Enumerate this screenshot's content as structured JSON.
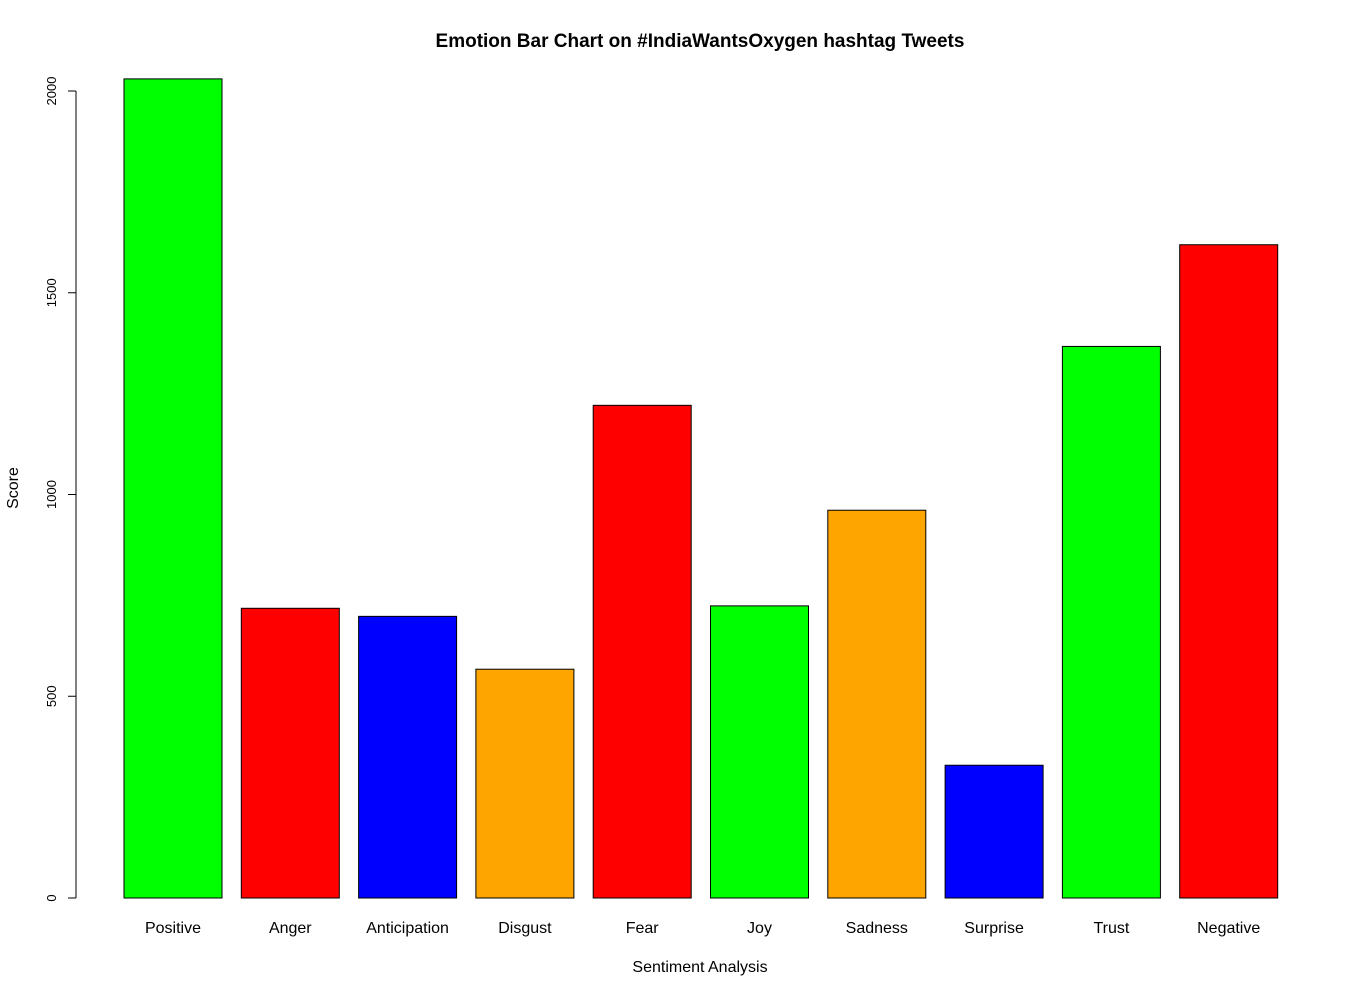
{
  "chart_data": {
    "type": "bar",
    "title": "Emotion Bar Chart on #IndiaWantsOxygen hashtag Tweets",
    "xlabel": "Sentiment Analysis",
    "ylabel": "Score",
    "ylim": [
      0,
      2000
    ],
    "yticks": [
      "0",
      "500",
      "1000",
      "1500",
      "2000"
    ],
    "grid": false,
    "categories": [
      "Positive",
      "Anger",
      "Anticipation",
      "Disgust",
      "Fear",
      "Joy",
      "Sadness",
      "Surprise",
      "Trust",
      "Negative"
    ],
    "values": [
      2030,
      718,
      698,
      567,
      1221,
      724,
      961,
      329,
      1367,
      1619
    ],
    "colors": [
      "#00ff00",
      "#ff0000",
      "#0000ff",
      "#ffa500",
      "#ff0000",
      "#00ff00",
      "#ffa500",
      "#0000ff",
      "#00ff00",
      "#ff0000"
    ]
  }
}
